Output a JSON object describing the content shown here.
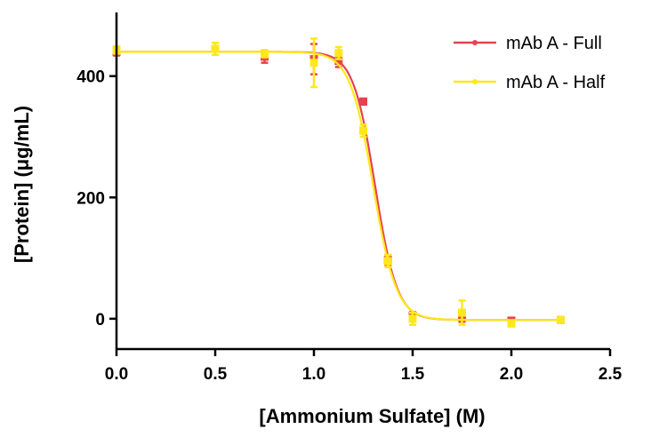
{
  "chart_data": {
    "type": "scatter",
    "title": "",
    "xlabel": "[Ammonium Sulfate] (M)",
    "ylabel": "[Protein] (μg/mL)",
    "xlim": [
      0,
      2.5
    ],
    "ylim": [
      -50,
      505
    ],
    "x_ticks": [
      0.0,
      0.5,
      1.0,
      1.5,
      2.0,
      2.5
    ],
    "x_tick_labels": [
      "0.0",
      "0.5",
      "1.0",
      "1.5",
      "2.0",
      "2.5"
    ],
    "y_ticks": [
      0,
      200,
      400
    ],
    "y_tick_labels": [
      "0",
      "200",
      "400"
    ],
    "grid": false,
    "legend_position": "top-right",
    "series": [
      {
        "name": "mAb A - Full",
        "color": "#e8424f",
        "marker": "square",
        "x": [
          0.0,
          0.75,
          1.0,
          1.125,
          1.25,
          1.375,
          1.5,
          1.75,
          2.0,
          2.25
        ],
        "y": [
          440,
          432,
          428,
          425,
          358,
          97,
          5,
          3,
          -3,
          -2
        ],
        "yerr": [
          6,
          10,
          25,
          10,
          5,
          8,
          6,
          8,
          3,
          4
        ],
        "fit": {
          "top": 440,
          "bottom": -2,
          "midpoint": 1.31,
          "slope": 18
        }
      },
      {
        "name": "mAb A - Half",
        "color": "#ffe81a",
        "marker": "square",
        "x": [
          0.0,
          0.5,
          0.75,
          1.0,
          1.125,
          1.25,
          1.375,
          1.5,
          1.75,
          2.0,
          2.25
        ],
        "y": [
          443,
          445,
          437,
          422,
          438,
          310,
          95,
          0,
          10,
          -8,
          -2
        ],
        "yerr": [
          6,
          10,
          6,
          40,
          10,
          10,
          10,
          10,
          20,
          3,
          5
        ],
        "fit": {
          "top": 440,
          "bottom": -2,
          "midpoint": 1.3,
          "slope": 17
        }
      }
    ]
  }
}
